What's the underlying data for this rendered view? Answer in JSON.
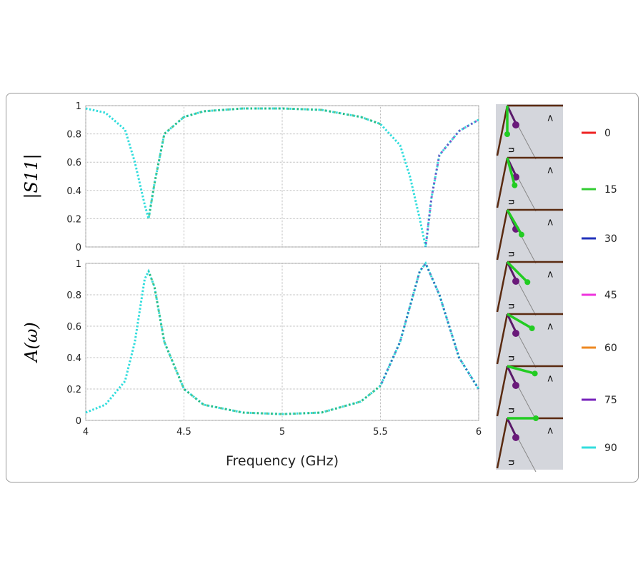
{
  "chart_data": [
    {
      "type": "line",
      "ylabel": "|S11|",
      "xlim": [
        4,
        6
      ],
      "ylim": [
        0,
        1
      ],
      "grid": true,
      "xticks": [
        "4",
        "4.5",
        "5",
        "5.5",
        "6"
      ],
      "yticks": [
        "0",
        "0.2",
        "0.4",
        "0.6",
        "0.8",
        "1"
      ],
      "x": [
        4.0,
        4.1,
        4.2,
        4.25,
        4.3,
        4.32,
        4.35,
        4.4,
        4.5,
        4.6,
        4.8,
        5.0,
        5.2,
        5.4,
        5.5,
        5.6,
        5.65,
        5.7,
        5.73,
        5.76,
        5.8,
        5.9,
        6.0
      ],
      "series": [
        {
          "name": "90",
          "color": "#33dddd",
          "values": [
            0.98,
            0.95,
            0.83,
            0.6,
            0.3,
            0.2,
            0.45,
            0.8,
            0.92,
            0.96,
            0.98,
            0.98,
            0.97,
            0.92,
            0.87,
            0.72,
            0.5,
            0.2,
            0.0,
            0.35,
            0.65,
            0.82,
            0.9
          ]
        },
        {
          "name": "15",
          "color": "#22aa55",
          "range": [
            4.32,
            5.5
          ]
        },
        {
          "name": "75",
          "color": "#7722bb",
          "range": [
            5.73,
            6.0
          ]
        }
      ]
    },
    {
      "type": "line",
      "ylabel": "A(ω)",
      "xlabel": "Frequency (GHz)",
      "xlim": [
        4,
        6
      ],
      "ylim": [
        0,
        1
      ],
      "grid": true,
      "xticks": [
        "4",
        "4.5",
        "5",
        "5.5",
        "6"
      ],
      "yticks": [
        "0",
        "0.2",
        "0.4",
        "0.6",
        "0.8",
        "1"
      ],
      "x": [
        4.0,
        4.1,
        4.2,
        4.25,
        4.3,
        4.32,
        4.35,
        4.4,
        4.5,
        4.6,
        4.8,
        5.0,
        5.2,
        5.4,
        5.5,
        5.6,
        5.7,
        5.73,
        5.8,
        5.9,
        6.0
      ],
      "series": [
        {
          "name": "90",
          "color": "#33dddd",
          "values": [
            0.05,
            0.1,
            0.25,
            0.5,
            0.9,
            0.95,
            0.85,
            0.5,
            0.2,
            0.1,
            0.05,
            0.04,
            0.05,
            0.12,
            0.22,
            0.5,
            0.95,
            1.0,
            0.8,
            0.4,
            0.2
          ]
        },
        {
          "name": "15",
          "color": "#22aa55",
          "range": [
            4.32,
            5.5
          ]
        },
        {
          "name": "30",
          "color": "#2244aa",
          "range": [
            5.5,
            6.0
          ]
        }
      ]
    }
  ],
  "legend": [
    {
      "label": "0",
      "color": "#ee2222"
    },
    {
      "label": "15",
      "color": "#33cc33"
    },
    {
      "label": "30",
      "color": "#2233bb"
    },
    {
      "label": "45",
      "color": "#ee33dd"
    },
    {
      "label": "60",
      "color": "#ee8822"
    },
    {
      "label": "75",
      "color": "#7722bb"
    },
    {
      "label": "90",
      "color": "#33dddd"
    }
  ],
  "diagram_angles": [
    0,
    15,
    30,
    45,
    60,
    75,
    90
  ],
  "diagram_labels": {
    "n": "n",
    "v": "<"
  }
}
